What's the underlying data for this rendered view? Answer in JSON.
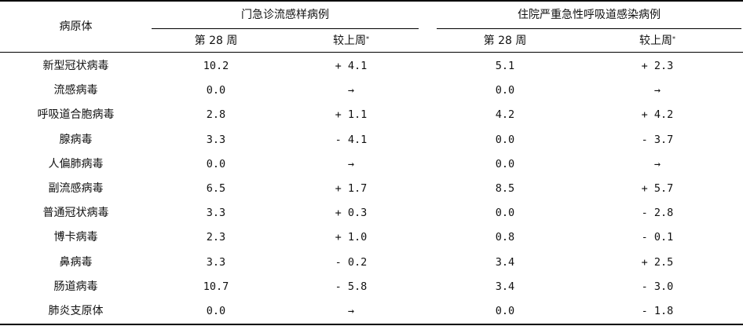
{
  "header": {
    "pathogen": "病原体",
    "group_outpatient": "门急诊流感样病例",
    "group_inpatient": "住院严重急性呼吸道感染病例",
    "week": "第 28 周",
    "vs_last_week": "较上周",
    "vs_mark": "*"
  },
  "rows": [
    {
      "name": "新型冠状病毒",
      "op_week": "10.2",
      "op_change": "+ 4.1",
      "ip_week": "5.1",
      "ip_change": "+ 2.3"
    },
    {
      "name": "流感病毒",
      "op_week": "0.0",
      "op_change": "→",
      "ip_week": "0.0",
      "ip_change": "→"
    },
    {
      "name": "呼吸道合胞病毒",
      "op_week": "2.8",
      "op_change": "+ 1.1",
      "ip_week": "4.2",
      "ip_change": "+ 4.2"
    },
    {
      "name": "腺病毒",
      "op_week": "3.3",
      "op_change": "- 4.1",
      "ip_week": "0.0",
      "ip_change": "- 3.7"
    },
    {
      "name": "人偏肺病毒",
      "op_week": "0.0",
      "op_change": "→",
      "ip_week": "0.0",
      "ip_change": "→"
    },
    {
      "name": "副流感病毒",
      "op_week": "6.5",
      "op_change": "+ 1.7",
      "ip_week": "8.5",
      "ip_change": "+ 5.7"
    },
    {
      "name": "普通冠状病毒",
      "op_week": "3.3",
      "op_change": "+ 0.3",
      "ip_week": "0.0",
      "ip_change": "- 2.8"
    },
    {
      "name": "博卡病毒",
      "op_week": "2.3",
      "op_change": "+ 1.0",
      "ip_week": "0.8",
      "ip_change": "- 0.1"
    },
    {
      "name": "鼻病毒",
      "op_week": "3.3",
      "op_change": "- 0.2",
      "ip_week": "3.4",
      "ip_change": "+ 2.5"
    },
    {
      "name": "肠道病毒",
      "op_week": "10.7",
      "op_change": "- 5.8",
      "ip_week": "3.4",
      "ip_change": "- 3.0"
    },
    {
      "name": "肺炎支原体",
      "op_week": "0.0",
      "op_change": "→",
      "ip_week": "0.0",
      "ip_change": "- 1.8"
    }
  ]
}
